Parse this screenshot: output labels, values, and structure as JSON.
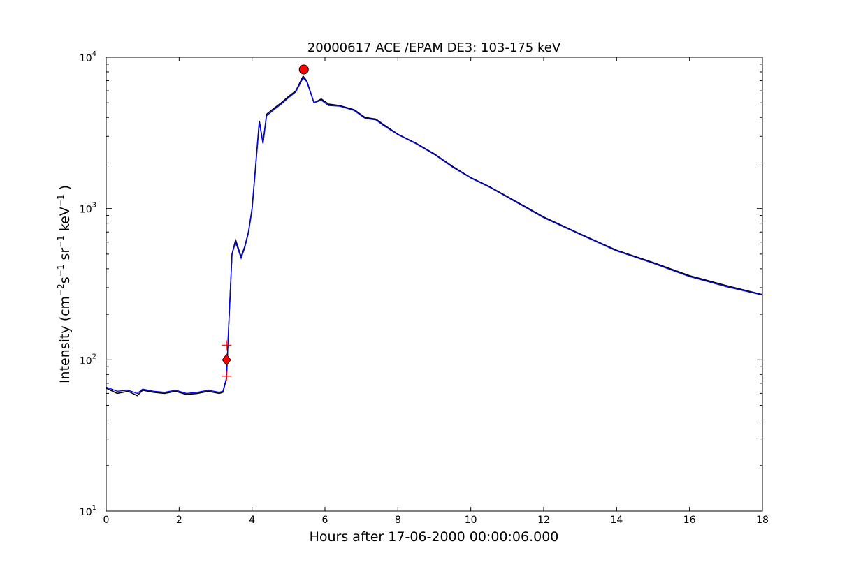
{
  "chart_data": {
    "type": "line",
    "title": "20000617 ACE /EPAM DE3: 103-175 keV",
    "xlabel": "Hours after 17-06-2000 00:00:06.000",
    "ylabel": {
      "prefix": "Intensity (cm",
      "sup1": "−2",
      "s": "s",
      "sup2": "−1",
      "sr": " sr",
      "sup3": "−1",
      "kev": " keV",
      "sup4": "−1",
      "suffix": " )"
    },
    "xlim": [
      0,
      18
    ],
    "ylim": [
      10,
      10000
    ],
    "yscale": "log",
    "grid": false,
    "xticks": [
      0,
      2,
      4,
      6,
      8,
      10,
      12,
      14,
      16,
      18
    ],
    "xtick_labels": [
      "0",
      "2",
      "4",
      "6",
      "8",
      "10",
      "12",
      "14",
      "16",
      "18"
    ],
    "yticks": [
      10,
      100,
      1000,
      10000
    ],
    "ytick_labels": [
      {
        "base": "10",
        "exp": "1"
      },
      {
        "base": "10",
        "exp": "2"
      },
      {
        "base": "10",
        "exp": "3"
      },
      {
        "base": "10",
        "exp": "4"
      }
    ],
    "series": [
      {
        "color": "#000000",
        "x": [
          0.0,
          0.3,
          0.6,
          0.85,
          1.0,
          1.3,
          1.6,
          1.9,
          2.2,
          2.5,
          2.8,
          3.1,
          3.2,
          3.3,
          3.35,
          3.45,
          3.55,
          3.7,
          3.8,
          3.9,
          4.0,
          4.2,
          4.3,
          4.4,
          4.6,
          4.8,
          5.0,
          5.2,
          5.4,
          5.5,
          5.7,
          5.9,
          6.1,
          6.4,
          6.8,
          7.1,
          7.4,
          7.6,
          8.0,
          8.5,
          9.0,
          9.5,
          10.0,
          10.5,
          11.0,
          12.0,
          13.0,
          14.0,
          15.0,
          16.0,
          17.0,
          18.0
        ],
        "y": [
          65,
          60,
          62,
          58,
          63,
          61,
          60,
          62,
          59,
          60,
          62,
          60,
          61,
          75,
          150,
          500,
          620,
          480,
          560,
          700,
          1000,
          3800,
          2700,
          4200,
          4600,
          5000,
          5500,
          6000,
          7500,
          7000,
          5000,
          5300,
          4900,
          4800,
          4500,
          4000,
          3900,
          3600,
          3100,
          2700,
          2300,
          1900,
          1600,
          1400,
          1200,
          880,
          680,
          530,
          440,
          360,
          310,
          270
        ]
      },
      {
        "color": "#0000ff",
        "x": [
          0.0,
          0.3,
          0.6,
          0.85,
          1.0,
          1.3,
          1.6,
          1.9,
          2.2,
          2.5,
          2.8,
          3.1,
          3.2,
          3.3,
          3.35,
          3.45,
          3.55,
          3.7,
          3.8,
          3.9,
          4.0,
          4.2,
          4.3,
          4.4,
          4.6,
          4.8,
          5.0,
          5.2,
          5.4,
          5.5,
          5.7,
          5.9,
          6.1,
          6.4,
          6.8,
          7.1,
          7.4,
          7.6,
          8.0,
          8.5,
          9.0,
          9.5,
          10.0,
          10.5,
          11.0,
          12.0,
          13.0,
          14.0,
          15.0,
          16.0,
          17.0,
          18.0
        ],
        "y": [
          66,
          62,
          63,
          60,
          64,
          62,
          61,
          63,
          60,
          61,
          63,
          61,
          62,
          76,
          150,
          500,
          600,
          470,
          550,
          690,
          980,
          3700,
          2700,
          4100,
          4500,
          4900,
          5400,
          5900,
          7300,
          6900,
          5000,
          5200,
          4800,
          4750,
          4450,
          3950,
          3850,
          3550,
          3080,
          2680,
          2280,
          1880,
          1590,
          1390,
          1190,
          870,
          675,
          525,
          435,
          355,
          305,
          268
        ]
      }
    ],
    "markers": [
      {
        "type": "circle",
        "color": "#ff0000",
        "x": 5.42,
        "y": 8300
      },
      {
        "type": "diamond",
        "color": "#ff0000",
        "x": 3.3,
        "y": 100
      },
      {
        "type": "plus",
        "color": "#ff0000",
        "x": 3.3,
        "y": 125
      },
      {
        "type": "plus",
        "color": "#ff0000",
        "x": 3.3,
        "y": 78
      }
    ]
  }
}
